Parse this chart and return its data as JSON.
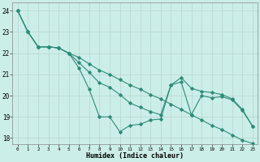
{
  "xlabel": "Humidex (Indice chaleur)",
  "background_color": "#cceee8",
  "line_color": "#2d8b78",
  "grid_color": "#b8d8d4",
  "ylim": [
    17.7,
    24.4
  ],
  "xlim": [
    -0.5,
    23.5
  ],
  "yticks": [
    18,
    19,
    20,
    21,
    22,
    23,
    24
  ],
  "xticks": [
    0,
    1,
    2,
    3,
    4,
    5,
    6,
    7,
    8,
    9,
    10,
    11,
    12,
    13,
    14,
    15,
    16,
    17,
    18,
    19,
    20,
    21,
    22,
    23
  ],
  "series1_y": [
    24.0,
    23.0,
    22.3,
    22.3,
    22.25,
    22.0,
    21.3,
    20.3,
    19.0,
    19.0,
    18.3,
    18.6,
    18.65,
    18.85,
    18.9,
    20.5,
    20.65,
    19.1,
    20.0,
    19.9,
    19.95,
    19.8,
    19.3,
    18.55
  ],
  "series2_y": [
    24.0,
    23.0,
    22.3,
    22.3,
    22.25,
    22.0,
    21.55,
    21.1,
    20.6,
    20.4,
    20.05,
    19.65,
    19.45,
    19.25,
    19.1,
    20.5,
    20.85,
    20.35,
    20.2,
    20.15,
    20.05,
    19.85,
    19.35,
    18.55
  ],
  "series3_y": [
    24.0,
    23.0,
    22.3,
    22.3,
    22.25,
    22.0,
    21.8,
    21.5,
    21.2,
    21.0,
    20.75,
    20.5,
    20.3,
    20.05,
    19.85,
    19.6,
    19.35,
    19.1,
    18.85,
    18.6,
    18.4,
    18.15,
    17.9,
    17.75
  ]
}
